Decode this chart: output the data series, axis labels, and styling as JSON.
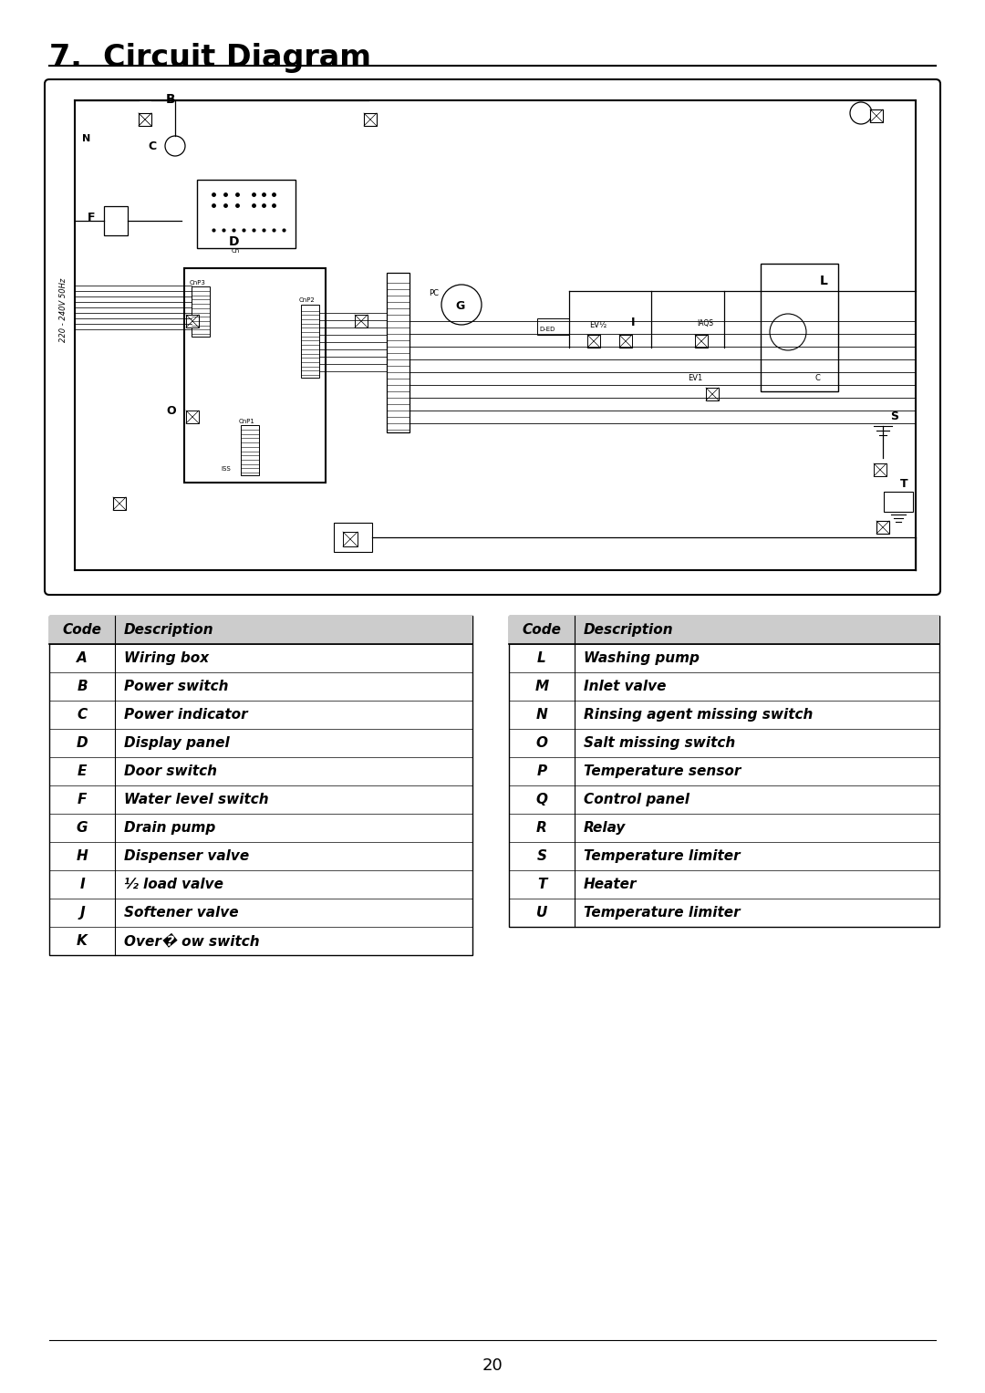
{
  "title": "7.  Circuit Diagram",
  "background": "#ffffff",
  "table_left": {
    "headers": [
      "Code",
      "Description"
    ],
    "rows": [
      [
        "A",
        "Wiring box"
      ],
      [
        "B",
        "Power switch"
      ],
      [
        "C",
        "Power indicator"
      ],
      [
        "D",
        "Display panel"
      ],
      [
        "E",
        "Door switch"
      ],
      [
        "F",
        "Water level switch"
      ],
      [
        "G",
        "Drain pump"
      ],
      [
        "H",
        "Dispenser valve"
      ],
      [
        "I",
        "½ load valve"
      ],
      [
        "J",
        "Softener valve"
      ],
      [
        "K",
        "Over� ow switch"
      ]
    ]
  },
  "table_right": {
    "headers": [
      "Code",
      "Description"
    ],
    "rows": [
      [
        "L",
        "Washing pump"
      ],
      [
        "M",
        "Inlet valve"
      ],
      [
        "N",
        "Rinsing agent missing switch"
      ],
      [
        "O",
        "Salt missing switch"
      ],
      [
        "P",
        "Temperature sensor"
      ],
      [
        "Q",
        "Control panel"
      ],
      [
        "R",
        "Relay"
      ],
      [
        "S",
        "Temperature limiter"
      ],
      [
        "T",
        "Heater"
      ],
      [
        "U",
        "Temperature limiter"
      ]
    ]
  },
  "page_number": "20"
}
